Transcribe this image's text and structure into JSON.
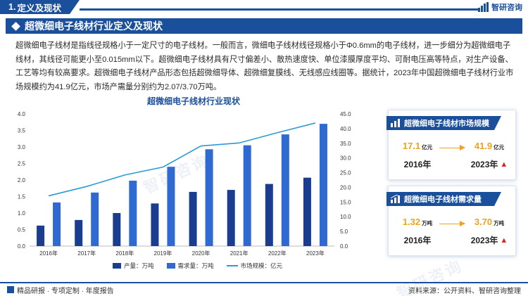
{
  "header": {
    "section_number": "1.",
    "section_label": "定义及现状",
    "brand": "智研咨询"
  },
  "title": "超微细电子线材行业定义及现状",
  "intro": "超微细电子线材是指线径规格小于一定尺寸的电子线材。一般而言，微细电子线材线径规格小于Φ0.6mm的电子线材，进一步细分为超微细电子线材，其线径可能更小至0.015mm以下。超微细电子线材具有尺寸偏差小、散热速度快、单位漆膜厚度平均、可耐电压高等特点，对生产设备、工艺等均有较高要求。超微细电子线材产品形态包括超微细导体、超微细复膜线、无线感应线圈等。据统计，2023年中国超微细电子线材行业市场规模约为41.9亿元，市场产需量分别约为2.07/3.70万吨。",
  "chart_data": {
    "type": "bar",
    "title": "超微细电子线材行业现状",
    "categories": [
      "2016年",
      "2017年",
      "2018年",
      "2019年",
      "2020年",
      "2021年",
      "2022年",
      "2023年"
    ],
    "series": [
      {
        "name": "产量：万吨",
        "kind": "bar",
        "axis": "left",
        "color": "#1a3d8f",
        "values": [
          0.62,
          0.79,
          1.0,
          1.29,
          1.64,
          1.7,
          1.88,
          2.07
        ]
      },
      {
        "name": "需求量：万吨",
        "kind": "bar",
        "axis": "left",
        "color": "#2e6ad1",
        "values": [
          1.32,
          1.62,
          1.98,
          2.4,
          2.93,
          3.05,
          3.38,
          3.7
        ]
      },
      {
        "name": "市场规模：亿元",
        "kind": "line",
        "axis": "right",
        "color": "#2b9bd6",
        "values": [
          17.1,
          20.3,
          24.2,
          26.9,
          34.1,
          35.1,
          38.6,
          41.9
        ]
      }
    ],
    "left_axis": {
      "ylim": [
        0,
        4.0
      ],
      "ticks": [
        "0.0",
        "0.5",
        "1.0",
        "1.5",
        "2.0",
        "2.5",
        "3.0",
        "3.5",
        "4.0"
      ]
    },
    "right_axis": {
      "ylim": [
        0,
        45.0
      ],
      "ticks": [
        "0.0",
        "5.0",
        "10.0",
        "15.0",
        "20.0",
        "25.0",
        "30.0",
        "35.0",
        "40.0",
        "45.0"
      ]
    },
    "grid": false,
    "legend_position": "bottom"
  },
  "cards": [
    {
      "title": "超微细电子线材市场规模",
      "icon": "market-size-icon",
      "from_value": "17.1",
      "from_unit": "亿元",
      "from_year": "2016年",
      "to_value": "41.9",
      "to_unit": "亿元",
      "to_year": "2023年"
    },
    {
      "title": "超微细电子线材需求量",
      "icon": "demand-icon",
      "from_value": "1.32",
      "from_unit": "万吨",
      "from_year": "2016年",
      "to_value": "3.70",
      "to_unit": "万吨",
      "to_year": "2023年"
    }
  ],
  "footer": {
    "left": "精品研报 · 专项定制 · 年度报告",
    "right": "资料来源：公开资料、智研咨询整理"
  },
  "watermark": "智研咨询",
  "colors": {
    "brand": "#1a4f9c",
    "accent": "#f0a21b",
    "up_arrow": "#e02020"
  }
}
